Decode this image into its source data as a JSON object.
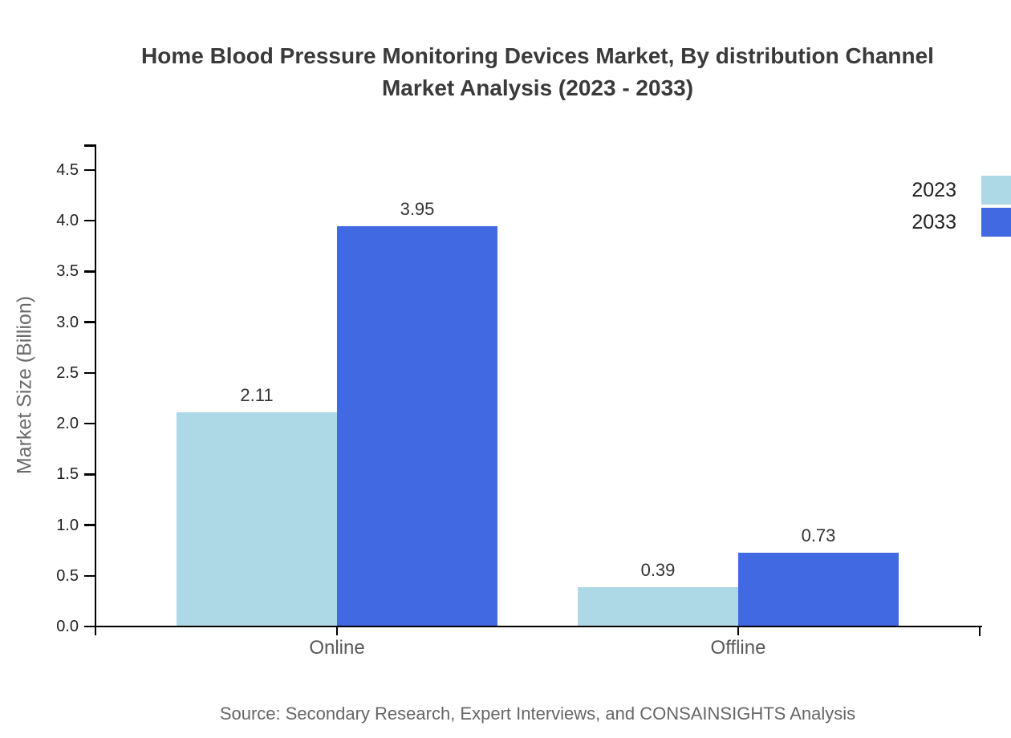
{
  "header": {
    "title_line1": "Home Blood Pressure Monitoring Devices Market, By distribution Channel",
    "title_line2": "Market Analysis (2023 - 2033)"
  },
  "chart_data": {
    "type": "bar",
    "title": "Home Blood Pressure Monitoring Devices Market, By distribution Channel Market Analysis (2023 - 2033)",
    "categories": [
      "Online",
      "Offline"
    ],
    "series": [
      {
        "name": "2023",
        "color": "#ADD8E6",
        "values": [
          2.11,
          0.39
        ]
      },
      {
        "name": "2033",
        "color": "#4169E1",
        "values": [
          3.95,
          0.73
        ]
      }
    ],
    "value_labels": [
      [
        "2.11",
        "0.39"
      ],
      [
        "3.95",
        "0.73"
      ]
    ],
    "xlabel": "",
    "ylabel": "Market Size (Billion)",
    "ylim": [
      0,
      4.5
    ],
    "yticks": [
      "0.0",
      "0.5",
      "1.0",
      "1.5",
      "2.0",
      "2.5",
      "3.0",
      "3.5",
      "4.0",
      "4.5"
    ],
    "grid": false,
    "legend_position": "upper-right-outside"
  },
  "footer": {
    "source": "Source: Secondary Research, Expert Interviews, and CONSAINSIGHTS Analysis"
  },
  "colors": {
    "series_2023": "#ADD8E6",
    "series_2033": "#4169E1",
    "axis": "#000000",
    "title_text": "#3A3A3A",
    "tick_label_text": "#1F1F1F",
    "category_label_text": "#595959",
    "value_label_text": "#333333",
    "muted_text": "#6B6B6B",
    "background": "#FFFFFF"
  }
}
